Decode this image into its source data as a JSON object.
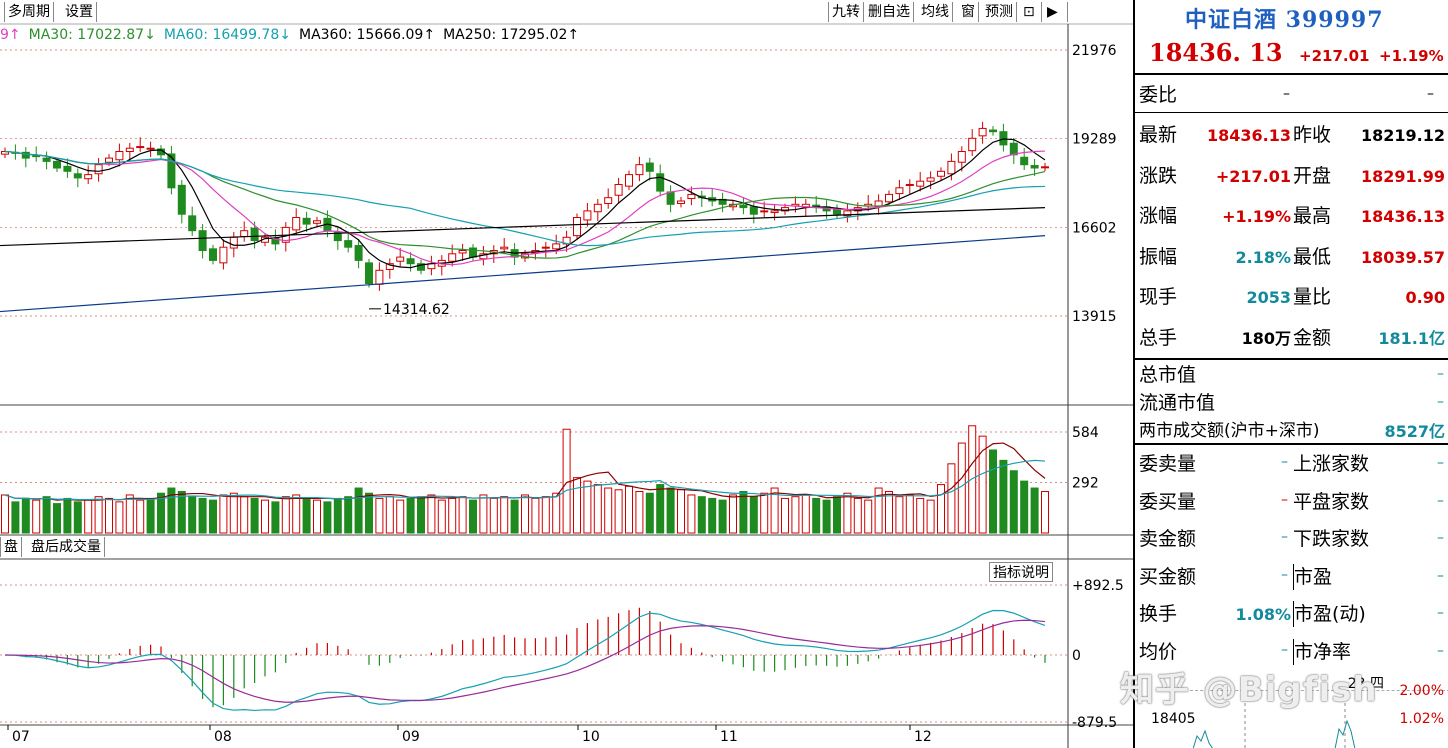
{
  "toolbar": {
    "left": [
      "多周期",
      "设置"
    ],
    "right": [
      "九转",
      "删自选",
      "均线",
      "窗",
      "预测"
    ],
    "indicator_tabs": [
      "盘",
      "盘后成交量"
    ],
    "indicator_help": "指标说明"
  },
  "ma_legend": [
    {
      "label": "9↑",
      "color": "#e040c0"
    },
    {
      "label": "MA30: 17022.87↓",
      "color": "#2f8f2f"
    },
    {
      "label": "MA60: 16499.78↓",
      "color": "#16a0b0"
    },
    {
      "label": "MA360: 15666.09↑",
      "color": "#000000"
    },
    {
      "label": "MA250: 17295.02↑",
      "color": "#000000"
    }
  ],
  "chart_data": {
    "type": "candlestick",
    "x_ticks": [
      "07",
      "08",
      "09",
      "10",
      "11",
      "12"
    ],
    "price_axis": [
      "21976",
      "19289",
      "16602",
      "13915"
    ],
    "volume_axis": [
      "584",
      "292"
    ],
    "macd_axis": [
      "+892.5",
      "0",
      "-879.5"
    ],
    "low_annotation": "14314.62",
    "closes": [
      18900,
      18850,
      18700,
      18750,
      18600,
      18400,
      18300,
      18100,
      18200,
      18500,
      18700,
      18900,
      19000,
      19050,
      19000,
      18800,
      17800,
      17000,
      16500,
      15900,
      15600,
      16000,
      16300,
      16500,
      16200,
      16300,
      16100,
      16600,
      16900,
      16700,
      16800,
      16500,
      16200,
      16000,
      15600,
      14900,
      15300,
      15500,
      15700,
      15500,
      15300,
      15500,
      15600,
      15800,
      15900,
      15700,
      15800,
      15900,
      16000,
      15700,
      15800,
      15900,
      16000,
      16100,
      16300,
      16900,
      17100,
      17300,
      17500,
      17900,
      18200,
      18500,
      18300,
      17700,
      17300,
      17400,
      17600,
      17500,
      17400,
      17300,
      17300,
      17200,
      17000,
      17100,
      17100,
      17200,
      17300,
      17300,
      17200,
      17100,
      17000,
      17100,
      17200,
      17300,
      17400,
      17600,
      17800,
      17900,
      18000,
      18100,
      18300,
      18600,
      18900,
      19300,
      19600,
      19500,
      19100,
      18800,
      18500,
      18400,
      18436
    ],
    "volumes": [
      220,
      180,
      200,
      190,
      210,
      170,
      200,
      180,
      190,
      210,
      200,
      180,
      220,
      190,
      200,
      230,
      260,
      240,
      210,
      200,
      190,
      220,
      230,
      210,
      200,
      190,
      180,
      210,
      220,
      200,
      190,
      180,
      200,
      210,
      260,
      230,
      200,
      210,
      190,
      200,
      210,
      220,
      190,
      200,
      210,
      190,
      220,
      200,
      210,
      190,
      220,
      200,
      210,
      230,
      600,
      320,
      300,
      280,
      260,
      250,
      270,
      240,
      230,
      280,
      260,
      250,
      220,
      210,
      200,
      190,
      220,
      240,
      210,
      230,
      260,
      200,
      210,
      220,
      200,
      190,
      210,
      230,
      200,
      190,
      260,
      240,
      210,
      220,
      200,
      190,
      280,
      400,
      520,
      620,
      560,
      480,
      420,
      360,
      300,
      260,
      240
    ]
  },
  "quote": {
    "name": "中证白酒 399997",
    "price": "18436. 13",
    "change": "+217.01",
    "change_pct": "+1.19%",
    "weibi_label": "委比",
    "weibi_v1": "–",
    "weibi_v2": "–",
    "stats": [
      {
        "l": "最新",
        "v": "18436.13",
        "vc": "red",
        "l2": "昨收",
        "v2": "18219.12",
        "v2c": "blk"
      },
      {
        "l": "涨跌",
        "v": "+217.01",
        "vc": "red",
        "l2": "开盘",
        "v2": "18291.99",
        "v2c": "red"
      },
      {
        "l": "涨幅",
        "v": "+1.19%",
        "vc": "red",
        "l2": "最高",
        "v2": "18436.13",
        "v2c": "red"
      },
      {
        "l": "振幅",
        "v": "2.18%",
        "vc": "teal",
        "l2": "最低",
        "v2": "18039.57",
        "v2c": "red"
      },
      {
        "l": "现手",
        "v": "2053",
        "vc": "teal",
        "l2": "量比",
        "v2": "0.90",
        "v2c": "red"
      },
      {
        "l": "总手",
        "v": "180万",
        "vc": "blk",
        "l2": "金额",
        "v2": "181.1亿",
        "v2c": "teal"
      }
    ],
    "market": [
      {
        "l": "总市值",
        "v": "–"
      },
      {
        "l": "流通市值",
        "v": "–"
      },
      {
        "l": "两市成交额(沪市+深市)",
        "v": "8527亿"
      }
    ],
    "orders": [
      {
        "l": "委卖量",
        "v": "–",
        "l2": "上涨家数",
        "v2": "–"
      },
      {
        "l": "委买量",
        "v": "–",
        "l2": "平盘家数",
        "v2": "–"
      },
      {
        "l": "卖金额",
        "v": "–",
        "l2": "下跌家数",
        "v2": "–"
      },
      {
        "l": "买金额",
        "v": "–",
        "l2": "市盈",
        "v2": "–"
      },
      {
        "l": "换手",
        "v": "1.08%",
        "l2": "市盈(动)",
        "v2": "–"
      },
      {
        "l": "均价",
        "v": "–",
        "l2": "市净率",
        "v2": "–"
      }
    ],
    "mini": {
      "price": "18405",
      "pct_top": "2.00%",
      "pct_bottom": "1.02%",
      "time": "23 四"
    }
  },
  "watermark": "知乎 @Bigfish"
}
